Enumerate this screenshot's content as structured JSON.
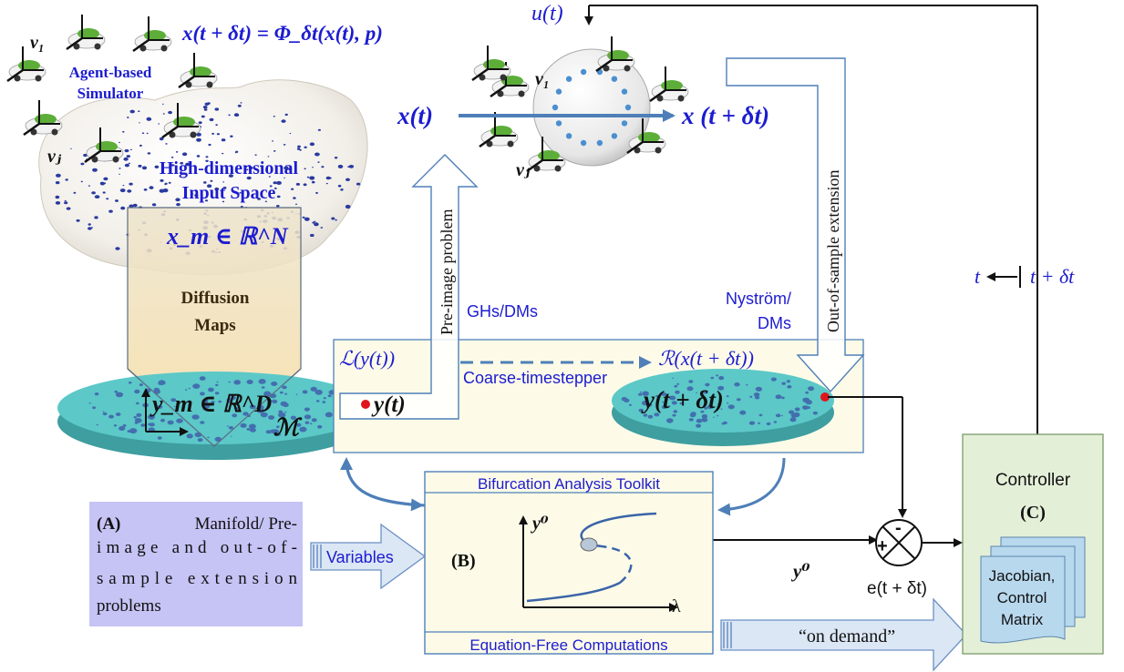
{
  "top_equation": "x(t + δt) = Φ_δt(x(t), p)",
  "control_input": "u(t)",
  "agent_sim_label_1": "Agent-based",
  "agent_sim_label_2": "Simulator",
  "high_dim_label_1": "High-dimensional",
  "high_dim_label_2": "Input Space",
  "x_m_label": "x_m ∈ ℝ^N",
  "diffusion_label_1": "Diffusion",
  "diffusion_label_2": "Maps",
  "y_m_label": "y_m ∈ ℝ^D",
  "manifold_symbol": "ℳ",
  "x_t_label": "x(t)",
  "x_t_dt_label": "x (t + δt)",
  "v1": "v₁",
  "vj": "vⱼ",
  "pre_image_label": "Pre-image problem",
  "out_of_sample_label": "Out-of-sample extension",
  "ghs_dms": "GHs/DMs",
  "nystrom_1": "Nyström/",
  "nystrom_2": "DMs",
  "lift_label": "ℒ(y(t))",
  "restrict_label": "ℛ(x(t + δt))",
  "coarse_label": "Coarse-timestepper",
  "y_t_label": "y(t)",
  "y_t_dt_label": "y(t + δt)",
  "time_shift_left": "t",
  "time_shift_right": "t + δt",
  "bifurcation_title": "Bifurcation Analysis Toolkit",
  "eqfree_title": "Equation-Free Computations",
  "b_label": "(B)",
  "y0_axis": "y⁰",
  "lambda_axis": "λ",
  "y0_signal": "y⁰",
  "error_label": "e(t + δt)",
  "plus": "+",
  "minus": "-",
  "a_box_bold": "(A)",
  "a_box_lines": [
    "Manifold/ Pre-",
    "image and out-of-",
    "sample extension",
    "problems"
  ],
  "variables_label": "Variables",
  "on_demand_label": "“on demand”",
  "controller_label": "Controller",
  "c_label": "(C)",
  "jacobian_lines": [
    "Jacobian,",
    "Control",
    "Matrix"
  ],
  "colors": {
    "diagram_blue": "#1c1cd0",
    "arrow_blue": "#4e7fb8",
    "diffusion_fill": "#f5e2b8",
    "manifold_teal": "#5cc8c8",
    "controller_fill": "#e4efd8",
    "panel_fill": "#fdfbe8",
    "a_box_fill": "#c6c3f5",
    "jacobian_fill": "#b8d8ee"
  }
}
